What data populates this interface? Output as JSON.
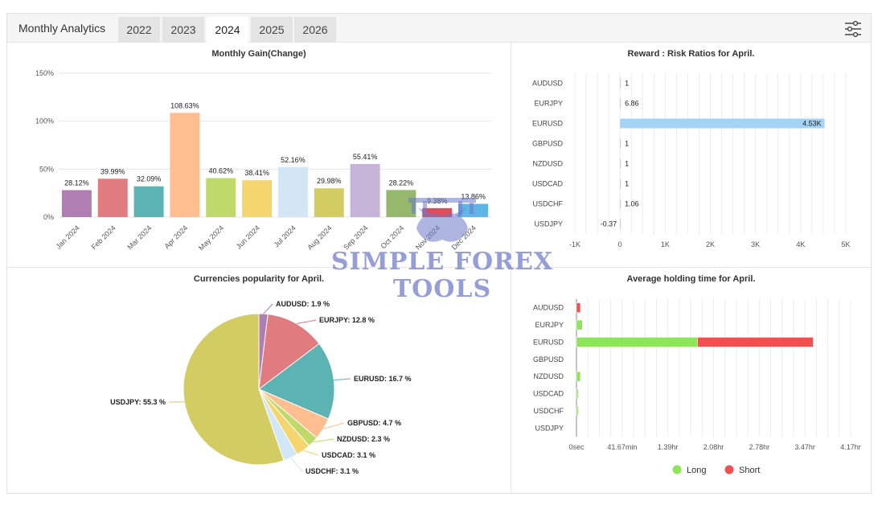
{
  "header": {
    "title": "Monthly Analytics",
    "tabs": [
      "2022",
      "2023",
      "2024",
      "2025",
      "2026"
    ],
    "active_tab": "2024"
  },
  "watermark": {
    "line1": "SIMPLE FOREX",
    "line2": "TOOLS"
  },
  "chart_data": [
    {
      "type": "bar",
      "title": "Monthly Gain(Change)",
      "categories": [
        "Jan 2024",
        "Feb 2024",
        "Mar 2024",
        "Apr 2024",
        "May 2024",
        "Jun 2024",
        "Jul 2024",
        "Aug 2024",
        "Sep 2024",
        "Oct 2024",
        "Nov 2024",
        "Dec 2024"
      ],
      "values": [
        28.12,
        39.99,
        32.09,
        108.63,
        40.62,
        38.41,
        52.16,
        29.98,
        55.41,
        28.22,
        9.38,
        13.86
      ],
      "value_labels": [
        "28.12%",
        "39.99%",
        "32.09%",
        "108.63%",
        "40.62%",
        "38.41%",
        "52.16%",
        "29.98%",
        "55.41%",
        "28.22%",
        "9.38%",
        "13.86%"
      ],
      "colors": [
        "#b07eb2",
        "#e07c80",
        "#5cb3b3",
        "#ffbe8f",
        "#bfd96a",
        "#f5d56e",
        "#d2e6f5",
        "#d3cc62",
        "#c6b4d8",
        "#95b86c",
        "#e04b5a",
        "#5fb4e8"
      ],
      "yticks": [
        "0%",
        "50%",
        "100%",
        "150%"
      ],
      "ylim": [
        0,
        150
      ],
      "grid": true
    },
    {
      "type": "bar",
      "orientation": "horizontal",
      "title": "Reward : Risk Ratios for April.",
      "categories": [
        "AUDUSD",
        "EURJPY",
        "EURUSD",
        "GBPUSD",
        "NZDUSD",
        "USDCAD",
        "USDCHF",
        "USDJPY"
      ],
      "values": [
        1,
        6.86,
        4530,
        1,
        1,
        1,
        1.06,
        -0.37
      ],
      "value_labels": [
        "1",
        "6.86",
        "4.53K",
        "1",
        "1",
        "1",
        "1.06",
        "-0.37"
      ],
      "color": "#a5d3f5",
      "xticks": [
        "-1K",
        "0",
        "1K",
        "2K",
        "3K",
        "4K",
        "5K"
      ],
      "xlim": [
        -1000,
        5000
      ],
      "grid": true
    },
    {
      "type": "pie",
      "title": "Currencies popularity for April.",
      "labels": [
        "AUDUSD",
        "EURJPY",
        "EURUSD",
        "GBPUSD",
        "NZDUSD",
        "USDCAD",
        "USDCHF",
        "USDJPY"
      ],
      "values": [
        1.9,
        12.8,
        16.7,
        4.7,
        2.3,
        3.1,
        3.1,
        55.3
      ],
      "value_labels": [
        "AUDUSD: 1.9 %",
        "EURJPY: 12.8 %",
        "EURUSD: 16.7 %",
        "GBPUSD: 4.7 %",
        "NZDUSD: 2.3 %",
        "USDCAD: 3.1 %",
        "USDCHF: 3.1 %",
        "USDJPY: 55.3 %"
      ],
      "colors": [
        "#b07eb2",
        "#e07c80",
        "#5cb3b3",
        "#ffbe8f",
        "#bfd96a",
        "#f5d56e",
        "#d2e6f5",
        "#d3cc62"
      ]
    },
    {
      "type": "bar",
      "orientation": "horizontal",
      "stacked": true,
      "title": "Average holding time for April.",
      "categories": [
        "AUDUSD",
        "EURJPY",
        "EURUSD",
        "GBPUSD",
        "NZDUSD",
        "USDCAD",
        "USDCHF",
        "USDJPY"
      ],
      "xticks": [
        "0sec",
        "41.67min",
        "1.39hr",
        "2.08hr",
        "2.78hr",
        "3.47hr",
        "4.17hr"
      ],
      "xlim_hours": [
        0,
        4.17
      ],
      "series": [
        {
          "name": "Long",
          "color": "#8ee55a",
          "values_hours": [
            0,
            0.09,
            1.84,
            0,
            0.06,
            0.02,
            0.02,
            0
          ]
        },
        {
          "name": "Short",
          "color": "#f25050",
          "values_hours": [
            0.06,
            0,
            1.76,
            0,
            0,
            0,
            0,
            0
          ]
        }
      ],
      "legend": "bottom-center"
    }
  ]
}
